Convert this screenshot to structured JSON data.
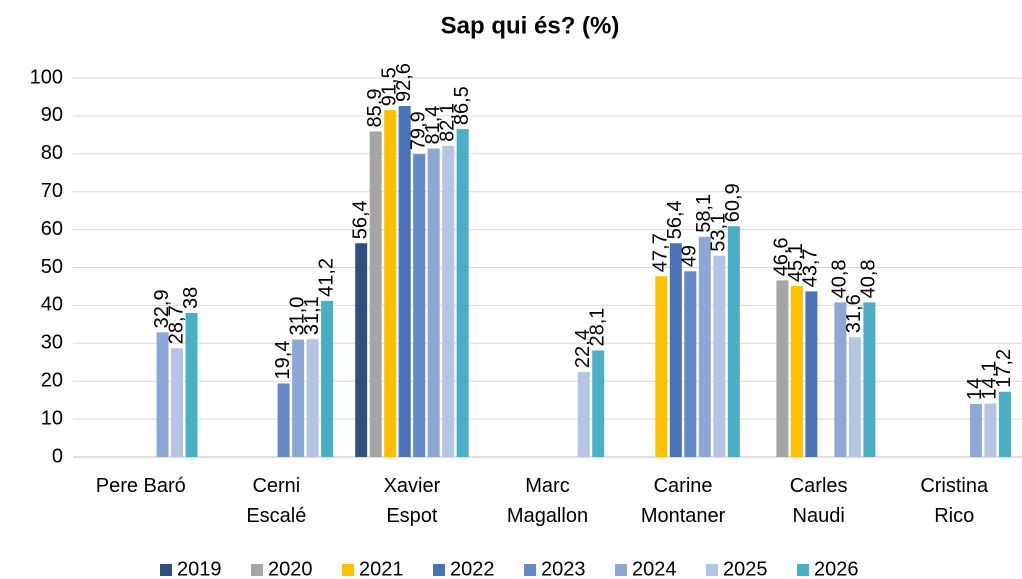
{
  "chart_data": {
    "type": "bar",
    "title": "Sap qui és? (%)",
    "categories": [
      "Pere Baró",
      "Cerni\nEscalé",
      "Xavier\nEspot",
      "Marc\nMagallon",
      "Carine\nMontaner",
      "Carles\nNaudi",
      "Cristina\nRico"
    ],
    "series": [
      {
        "name": "2019",
        "color": "#2f4f7f",
        "values": [
          null,
          null,
          56.4,
          null,
          null,
          null,
          null
        ],
        "value_labels": [
          null,
          null,
          "56,4",
          null,
          null,
          null,
          null
        ]
      },
      {
        "name": "2020",
        "color": "#a5a5a5",
        "values": [
          null,
          null,
          85.9,
          null,
          null,
          46.6,
          null
        ],
        "value_labels": [
          null,
          null,
          "85,9",
          null,
          null,
          "46,6",
          null
        ]
      },
      {
        "name": "2021",
        "color": "#ffc000",
        "values": [
          null,
          null,
          91.5,
          null,
          47.7,
          45.1,
          null
        ],
        "value_labels": [
          null,
          null,
          "91,5",
          null,
          "47,7",
          "45,1",
          null
        ]
      },
      {
        "name": "2022",
        "color": "#4a72b8",
        "values": [
          null,
          null,
          92.6,
          null,
          56.4,
          43.7,
          null
        ],
        "value_labels": [
          null,
          null,
          "92,6",
          null,
          "56,4",
          "43,7",
          null
        ]
      },
      {
        "name": "2023",
        "color": "#6589c8",
        "values": [
          null,
          19.4,
          79.9,
          null,
          49,
          null,
          null
        ],
        "value_labels": [
          null,
          "19,4",
          "79,9",
          null,
          "49",
          null,
          null
        ]
      },
      {
        "name": "2024",
        "color": "#8ea8d6",
        "values": [
          32.9,
          31.0,
          81.4,
          null,
          58.1,
          40.8,
          14
        ],
        "value_labels": [
          "32,9",
          "31,0",
          "81,4",
          null,
          "58,1",
          "40,8",
          "14"
        ]
      },
      {
        "name": "2025",
        "color": "#b4c5e4",
        "values": [
          28.7,
          31.1,
          82.1,
          22.4,
          53.1,
          31.6,
          14.1
        ],
        "value_labels": [
          "28,7",
          "31,1",
          "82,1",
          "22,4",
          "53,1",
          "31,6",
          "14,1"
        ]
      },
      {
        "name": "2026",
        "color": "#4aaec4",
        "values": [
          38,
          41.2,
          86.5,
          28.1,
          60.9,
          40.8,
          17.2
        ],
        "value_labels": [
          "38",
          "41,2",
          "86,5",
          "28,1",
          "60,9",
          "40,8",
          "17,2"
        ]
      }
    ],
    "ylim": [
      0,
      100
    ],
    "yticks": [
      0,
      10,
      20,
      30,
      40,
      50,
      60,
      70,
      80,
      90,
      100
    ],
    "grid": true,
    "legend": "bottom"
  }
}
